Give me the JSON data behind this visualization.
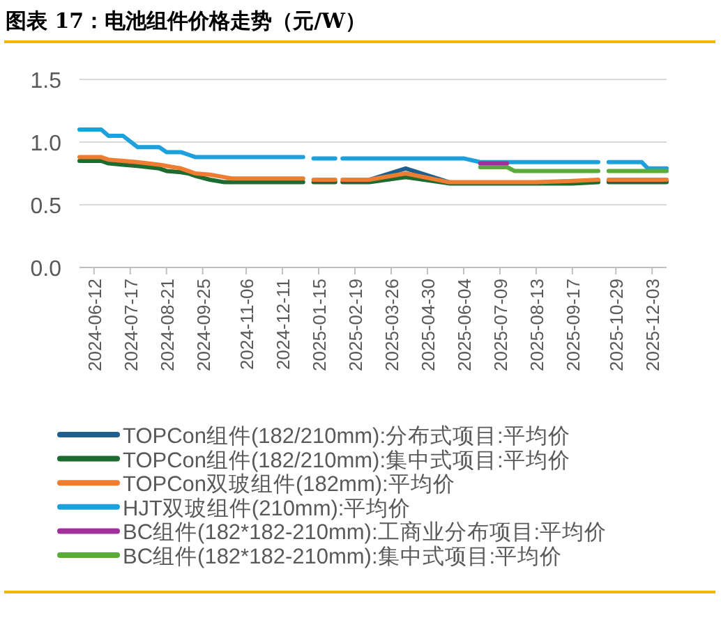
{
  "chart_data": {
    "type": "line",
    "title": "图表 17：电池组件价格走势（元/W）",
    "x": [
      "2024-05-29",
      "2024-06-19",
      "2024-06-26",
      "2024-07-10",
      "2024-07-24",
      "2024-08-14",
      "2024-08-21",
      "2024-09-04",
      "2024-09-11",
      "2024-09-18",
      "2024-10-02",
      "2024-10-16",
      "2024-10-23",
      "2024-12-31",
      "2025-01-05",
      "2025-01-10",
      "2025-01-31",
      "2025-02-03",
      "2025-02-07",
      "2025-03-05",
      "2025-04-09",
      "2025-05-21",
      "2025-06-04",
      "2025-06-20",
      "2025-06-25",
      "2025-07-16",
      "2025-07-23",
      "2025-08-13",
      "2025-09-17",
      "2025-10-12",
      "2025-10-17",
      "2025-10-22",
      "2025-11-23",
      "2025-11-29",
      "2025-12-17"
    ],
    "series": [
      {
        "name": "TOPCon组件(182/210mm):分布式项目:平均价",
        "color": "#1f5f8b",
        "values": [
          null,
          null,
          null,
          null,
          null,
          null,
          null,
          null,
          null,
          null,
          null,
          null,
          null,
          null,
          null,
          null,
          null,
          null,
          null,
          0.7,
          0.79,
          0.68,
          null,
          null,
          null,
          null,
          null,
          null,
          null,
          null,
          null,
          null,
          null,
          null,
          null
        ]
      },
      {
        "name": "TOPCon组件(182/210mm):集中式项目:平均价",
        "color": "#1e6b30",
        "values": [
          0.85,
          0.85,
          0.83,
          0.82,
          0.81,
          0.79,
          0.77,
          0.76,
          0.75,
          0.73,
          0.7,
          0.68,
          0.68,
          0.68,
          null,
          0.68,
          0.68,
          null,
          0.68,
          0.68,
          0.72,
          0.67,
          0.67,
          0.67,
          0.67,
          0.67,
          0.67,
          0.67,
          0.67,
          0.68,
          null,
          0.68,
          0.68,
          0.68,
          0.68
        ]
      },
      {
        "name": "TOPCon双玻组件(182mm):平均价",
        "color": "#ed7d31",
        "values": [
          0.88,
          0.88,
          0.86,
          0.85,
          0.84,
          0.82,
          0.81,
          0.79,
          0.77,
          0.75,
          0.74,
          0.72,
          0.71,
          0.71,
          null,
          0.7,
          0.7,
          null,
          0.7,
          0.7,
          0.75,
          0.68,
          0.68,
          0.68,
          0.68,
          0.68,
          0.68,
          0.68,
          0.69,
          0.7,
          null,
          0.7,
          0.7,
          0.7,
          0.7
        ]
      },
      {
        "name": "HJT双玻组件(210mm):平均价",
        "color": "#1ea0dc",
        "values": [
          1.1,
          1.1,
          1.05,
          1.05,
          0.96,
          0.96,
          0.92,
          0.92,
          0.9,
          0.88,
          0.88,
          0.88,
          0.88,
          0.88,
          null,
          0.87,
          0.87,
          null,
          0.87,
          0.87,
          0.87,
          0.87,
          0.87,
          0.84,
          0.84,
          0.84,
          0.84,
          0.84,
          0.84,
          0.84,
          null,
          0.84,
          0.84,
          0.79,
          0.79
        ]
      },
      {
        "name": "BC组件(182*182-210mm):工商业分布项目:平均价",
        "color": "#a0309a",
        "values": [
          null,
          null,
          null,
          null,
          null,
          null,
          null,
          null,
          null,
          null,
          null,
          null,
          null,
          null,
          null,
          null,
          null,
          null,
          null,
          null,
          null,
          null,
          null,
          0.83,
          0.83,
          0.83,
          null,
          null,
          null,
          null,
          null,
          null,
          null,
          null,
          null
        ]
      },
      {
        "name": "BC组件(182*182-210mm):集中式项目:平均价",
        "color": "#5aab3a",
        "values": [
          null,
          null,
          null,
          null,
          null,
          null,
          null,
          null,
          null,
          null,
          null,
          null,
          null,
          null,
          null,
          null,
          null,
          null,
          null,
          null,
          null,
          null,
          null,
          0.8,
          0.8,
          0.8,
          0.77,
          0.77,
          0.77,
          0.77,
          null,
          0.77,
          0.77,
          0.77,
          0.77
        ]
      }
    ],
    "xlim": [
      "2024-05-29",
      "2025-12-17"
    ],
    "xticks": [
      "2024-06-12",
      "2024-07-17",
      "2024-08-21",
      "2024-09-25",
      "2024-11-06",
      "2024-12-11",
      "2025-01-15",
      "2025-02-19",
      "2025-03-26",
      "2025-04-30",
      "2025-06-04",
      "2025-07-09",
      "2025-08-13",
      "2025-09-17",
      "2025-10-29",
      "2025-12-03"
    ],
    "ylim": [
      0,
      1.5
    ],
    "yticks": [
      {
        "value": 0,
        "label": "0.0"
      },
      {
        "value": 0.5,
        "label": "0.5"
      },
      {
        "value": 1,
        "label": "1.0"
      },
      {
        "value": 1.5,
        "label": "1.5"
      }
    ],
    "grid": "y",
    "legend": "bottom",
    "line_style": "solid",
    "marker": "none"
  }
}
